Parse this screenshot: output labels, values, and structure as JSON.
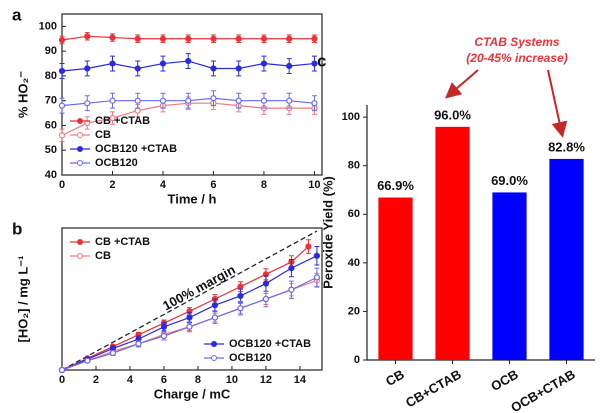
{
  "chart_data": [
    {
      "type": "line",
      "panel_label": "a",
      "x_label": "Time / h",
      "y_label": "% HO₂⁻",
      "x": [
        0,
        1,
        2,
        3,
        4,
        5,
        6,
        7,
        8,
        9,
        10
      ],
      "xlim": [
        0,
        10.3
      ],
      "xticks": [
        0,
        2,
        4,
        6,
        8,
        10
      ],
      "ylim": [
        40,
        105
      ],
      "yticks": [
        40,
        50,
        60,
        70,
        80,
        90,
        100
      ],
      "legend": "lower left",
      "series": [
        {
          "name": "CB +CTAB",
          "color": "#e8333a",
          "marker": "filled",
          "values": [
            94.5,
            96,
            95.5,
            95,
            95,
            95,
            95,
            95,
            95,
            95,
            95
          ],
          "errors": [
            1.5,
            1.5,
            1.5,
            1.5,
            1.5,
            1.5,
            1.5,
            1.5,
            1.5,
            1.5,
            1.5
          ]
        },
        {
          "name": "CB",
          "color": "#f07a80",
          "marker": "open",
          "values": [
            56,
            61,
            63,
            66,
            68,
            69,
            69,
            68,
            67,
            67,
            67
          ],
          "errors": [
            2.5,
            2.5,
            2.5,
            2.5,
            2.5,
            2.5,
            2.5,
            2.5,
            2.5,
            2.5,
            2.5
          ]
        },
        {
          "name": "OCB120 +CTAB",
          "color": "#2a2ae0",
          "marker": "filled",
          "values": [
            82,
            83,
            85,
            83,
            85,
            86,
            83,
            83,
            85,
            84,
            85
          ],
          "errors": [
            3,
            3,
            3,
            3,
            3,
            3,
            3,
            3,
            3,
            3,
            3
          ]
        },
        {
          "name": "OCB120",
          "color": "#6a6af0",
          "marker": "open",
          "values": [
            68,
            69,
            70,
            70,
            70,
            70,
            71,
            70,
            70,
            70,
            69
          ],
          "errors": [
            3,
            3,
            3,
            3,
            3,
            3,
            3,
            3,
            3,
            3,
            3
          ]
        }
      ]
    },
    {
      "type": "line",
      "panel_label": "b",
      "x_label": "Charge / mC",
      "y_label": "[HO₂] / mg L⁻¹",
      "xlim": [
        0,
        15.3
      ],
      "xticks": [
        0,
        2,
        4,
        6,
        8,
        10,
        12,
        14
      ],
      "ylim": [
        0,
        46
      ],
      "reference_line": {
        "label": "100% margin",
        "x": [
          0,
          15
        ],
        "y": [
          0,
          45
        ]
      },
      "series": [
        {
          "name": "CB +CTAB",
          "color": "#e8333a",
          "marker": "filled",
          "legend": "upper left",
          "x": [
            0,
            1.5,
            3,
            4.5,
            6,
            7.5,
            9,
            10.5,
            12,
            13.5,
            14.5
          ],
          "values": [
            0,
            3.8,
            7.6,
            11.4,
            15.2,
            19,
            23,
            27,
            31,
            35,
            40
          ],
          "errors": [
            0,
            0.4,
            0.6,
            0.8,
            1,
            1.2,
            1.4,
            1.6,
            1.8,
            2,
            2.2
          ]
        },
        {
          "name": "CB",
          "color": "#f07a80",
          "marker": "open",
          "legend": "upper left",
          "x": [
            0,
            1.5,
            3,
            4.5,
            6,
            7.5,
            9,
            10.5,
            12,
            13.5,
            15
          ],
          "values": [
            0,
            3,
            6,
            8.5,
            11.5,
            14,
            17,
            20,
            23,
            26,
            29
          ],
          "errors": [
            0,
            0.4,
            0.6,
            0.8,
            1,
            1.2,
            1.4,
            1.6,
            1.8,
            2,
            2.2
          ]
        },
        {
          "name": "OCB120 +CTAB",
          "color": "#2a2ae0",
          "marker": "filled",
          "legend": "lower right",
          "x": [
            0,
            1.5,
            3,
            4.5,
            6,
            7.5,
            9,
            10.5,
            12,
            13.5,
            15
          ],
          "values": [
            0,
            3.5,
            7,
            10,
            14,
            17,
            21,
            24,
            28,
            33,
            37
          ],
          "errors": [
            0,
            0.5,
            0.8,
            1,
            1.3,
            1.6,
            1.9,
            2.2,
            2.5,
            2.8,
            3
          ]
        },
        {
          "name": "OCB120",
          "color": "#6a6af0",
          "marker": "open",
          "legend": "lower right",
          "x": [
            0,
            1.5,
            3,
            4.5,
            6,
            7.5,
            9,
            10.5,
            12,
            13.5,
            15
          ],
          "values": [
            0,
            3,
            5.5,
            8.5,
            11,
            14,
            17,
            20,
            23,
            26,
            30
          ],
          "errors": [
            0,
            0.5,
            0.8,
            1,
            1.3,
            1.6,
            1.9,
            2.2,
            2.5,
            2.8,
            3
          ]
        }
      ]
    },
    {
      "type": "bar",
      "panel_label": "c",
      "y_label": "Peroxide Yield (%)",
      "categories": [
        "CB",
        "CB+CTAB",
        "OCB",
        "OCB+CTAB"
      ],
      "values": [
        66.9,
        96.0,
        69.0,
        82.8
      ],
      "value_labels": [
        "66.9%",
        "96.0%",
        "69.0%",
        "82.8%"
      ],
      "colors": [
        "#ff0000",
        "#ff0000",
        "#0000ff",
        "#0000ff"
      ],
      "ylim": [
        0,
        105
      ],
      "yticks": [
        0,
        20,
        40,
        60,
        80,
        100
      ],
      "annotation": [
        "CTAB Systems",
        "(20-45% increase)"
      ]
    }
  ]
}
